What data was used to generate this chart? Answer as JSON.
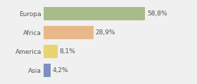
{
  "categories": [
    "Europa",
    "Africa",
    "America",
    "Asia"
  ],
  "values": [
    58.8,
    28.9,
    8.1,
    4.2
  ],
  "labels": [
    "58,8%",
    "28,9%",
    "8,1%",
    "4,2%"
  ],
  "bar_colors": [
    "#a8bc8a",
    "#e8b88a",
    "#e8d470",
    "#7b8fc0"
  ],
  "xlim": [
    0,
    75
  ],
  "background_color": "#f0f0f0",
  "bar_height": 0.72,
  "label_fontsize": 6.5,
  "tick_fontsize": 6.5,
  "text_color": "#555555"
}
